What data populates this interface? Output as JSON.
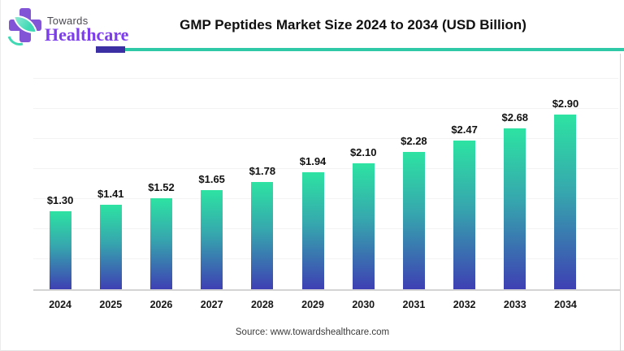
{
  "header": {
    "logo_towards": "Towards",
    "logo_healthcare": "Healthcare",
    "title": "GMP Peptides Market Size 2024 to 2034 (USD Billion)"
  },
  "footer": {
    "source": "Source: www.towardshealthcare.com"
  },
  "colors": {
    "bar_gradient_top": "#2DE3A2",
    "bar_gradient_mid": "#36A6AE",
    "bar_gradient_bottom": "#3E40B3",
    "divider_purple": "#3B2FA3",
    "divider_teal": "#2FC9A8",
    "logo_purple": "#7D3CED",
    "axis_line": "#D4D4D4"
  },
  "chart_data": {
    "type": "bar",
    "title": "GMP Peptides Market Size 2024 to 2034 (USD Billion)",
    "categories": [
      "2024",
      "2025",
      "2026",
      "2027",
      "2028",
      "2029",
      "2030",
      "2031",
      "2032",
      "2033",
      "2034"
    ],
    "values": [
      1.3,
      1.41,
      1.52,
      1.65,
      1.78,
      1.94,
      2.1,
      2.28,
      2.47,
      2.68,
      2.9
    ],
    "value_prefix": "$",
    "value_decimals": 2,
    "xlabel": "",
    "ylabel": "",
    "ylim": [
      0,
      3.5
    ],
    "gridline_step": 0.5,
    "grid": "horizontal",
    "legend": "none"
  }
}
